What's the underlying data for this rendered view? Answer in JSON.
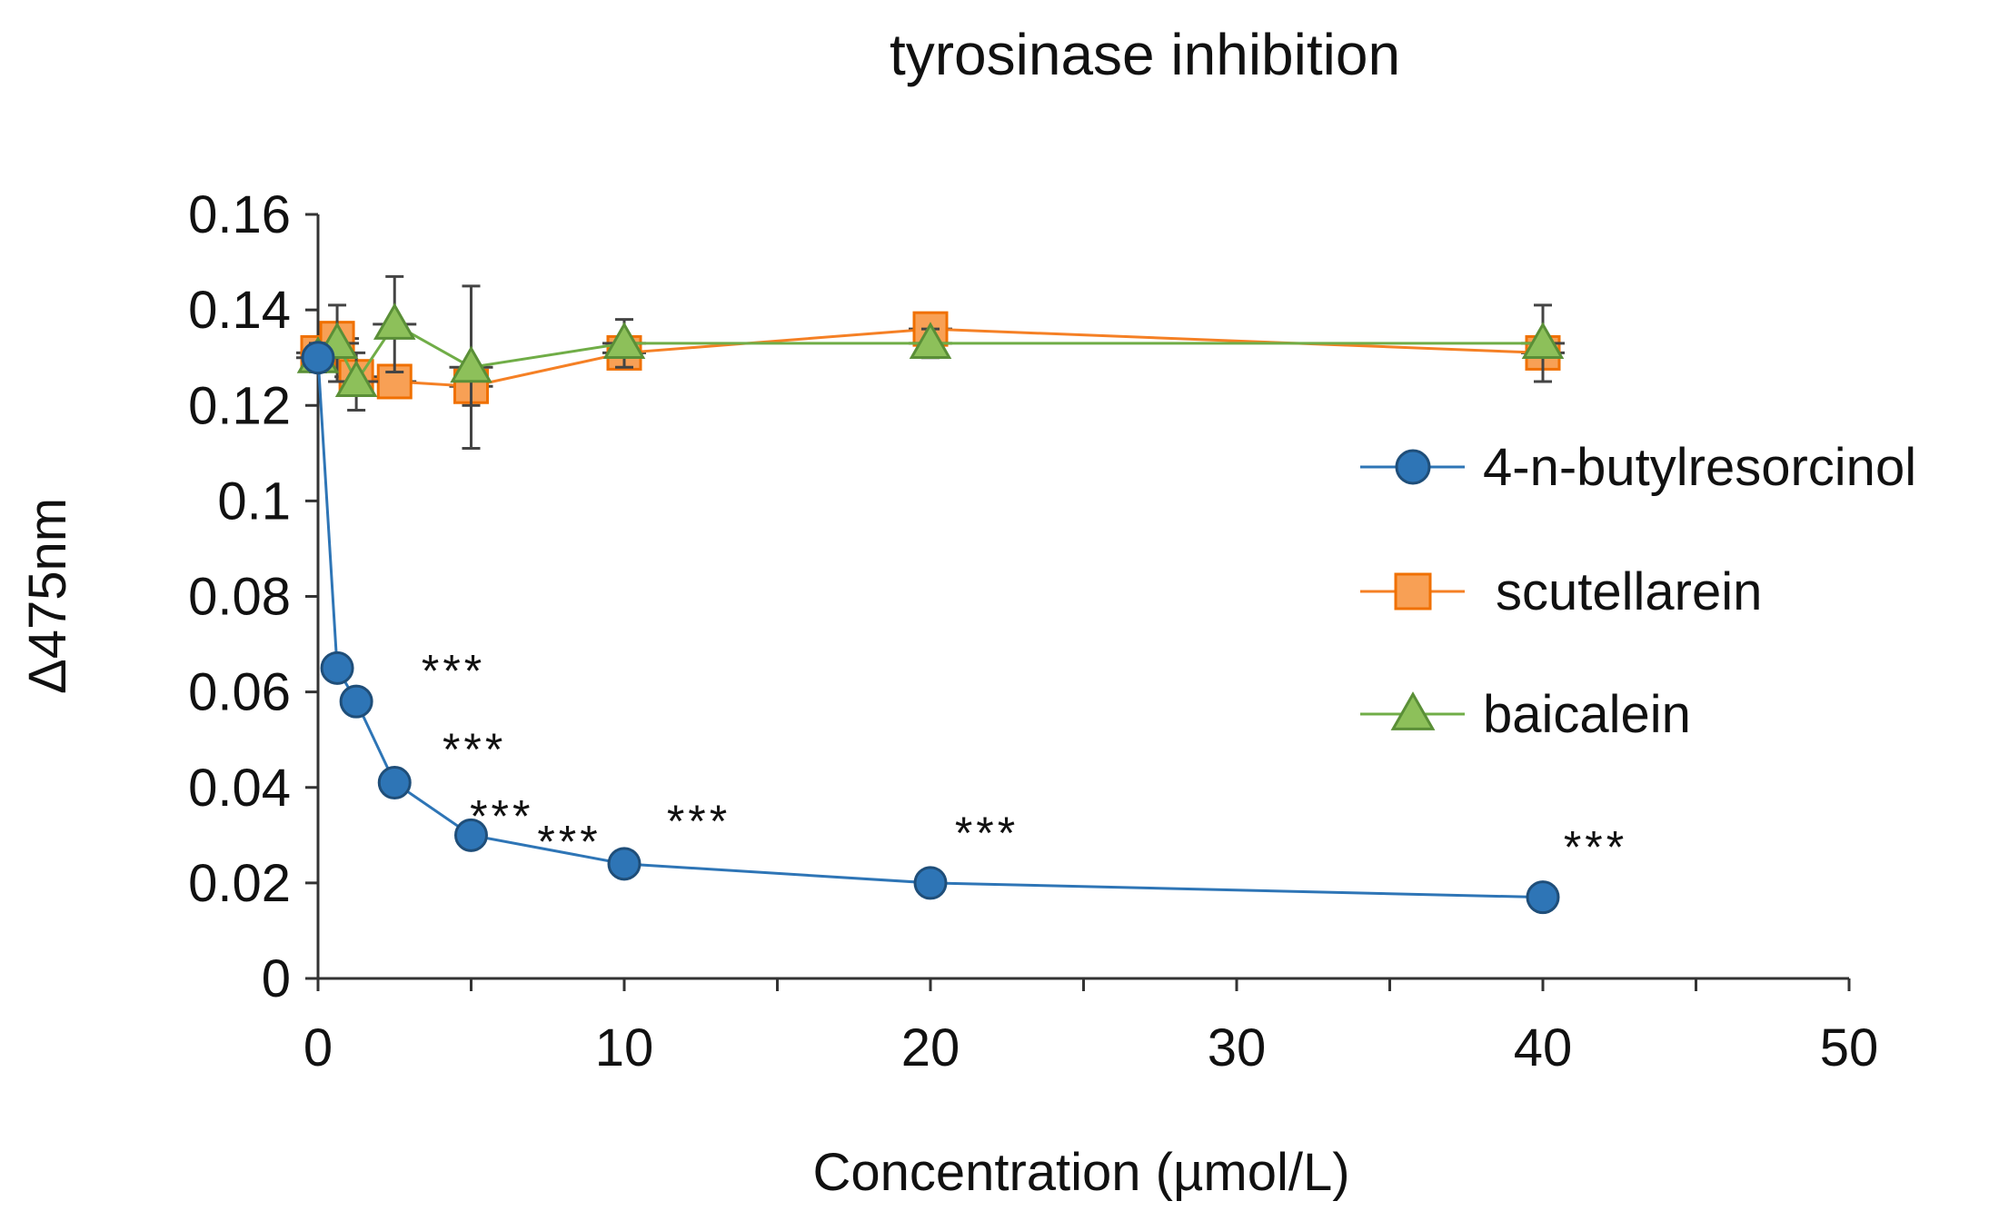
{
  "chart_data": {
    "type": "line",
    "title": "tyrosinase inhibition",
    "xlabel": "Concentration (µmol/L)",
    "ylabel": "Δ475nm",
    "xlim": [
      0,
      50
    ],
    "ylim": [
      0,
      0.16
    ],
    "x_ticks": [
      "0",
      "10",
      "20",
      "30",
      "40",
      "50"
    ],
    "y_ticks": [
      "0",
      "0.02",
      "0.04",
      "0.06",
      "0.08",
      "0.1",
      "0.12",
      "0.14",
      "0.16"
    ],
    "grid": false,
    "legend_position": "right",
    "series": [
      {
        "name": "4-n-butylresorcinol",
        "color": "#2E75B6",
        "marker_fill": "#2E75B6",
        "marker_stroke": "#1F4E79",
        "marker": "circle",
        "x": [
          0,
          0.625,
          1.25,
          2.5,
          5,
          10,
          20,
          40
        ],
        "y": [
          0.13,
          0.065,
          0.058,
          0.041,
          0.03,
          0.024,
          0.02,
          0.017
        ],
        "significance": [
          "",
          "***",
          "***",
          "***",
          "***",
          "***",
          "***",
          "***"
        ]
      },
      {
        "name": "scutellarein",
        "color": "#F58025",
        "marker_fill": "#F8A055",
        "marker_stroke": "#F07000",
        "marker": "square",
        "x": [
          0,
          0.625,
          1.25,
          2.5,
          5,
          10,
          20,
          40
        ],
        "y": [
          0.131,
          0.134,
          0.126,
          0.125,
          0.124,
          0.131,
          0.136,
          0.131
        ],
        "y_err": [
          0.003,
          0.003,
          0.003,
          0.003,
          0.004,
          0.003,
          0.002,
          0.002
        ]
      },
      {
        "name": "baicalein",
        "color": "#70AD47",
        "marker_fill": "#8DC05A",
        "marker_stroke": "#5A8F37",
        "marker": "triangle",
        "x": [
          0,
          0.625,
          1.25,
          2.5,
          5,
          10,
          20,
          40
        ],
        "y": [
          0.13,
          0.133,
          0.125,
          0.137,
          0.128,
          0.133,
          0.133,
          0.133
        ],
        "y_err": [
          0.003,
          0.008,
          0.006,
          0.01,
          0.017,
          0.005,
          0.003,
          0.008
        ]
      }
    ]
  }
}
